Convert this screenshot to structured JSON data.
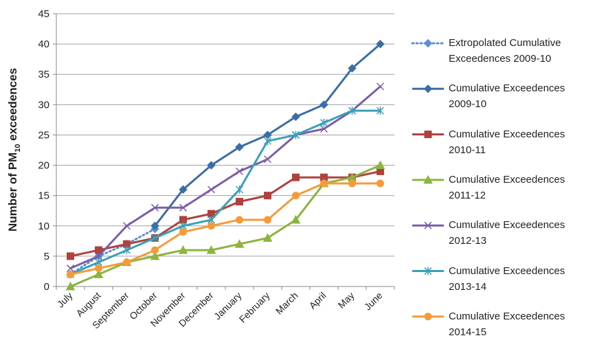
{
  "chart_data": {
    "type": "line",
    "y_label": [
      "Number of PM",
      "10",
      " exceedences"
    ],
    "categories": [
      "July",
      "August",
      "September",
      "October",
      "November",
      "December",
      "January",
      "February",
      "March",
      "April",
      "May",
      "June"
    ],
    "ylim": [
      0,
      45
    ],
    "yticks": [
      0,
      5,
      10,
      15,
      20,
      25,
      30,
      35,
      40,
      45
    ],
    "grid": true,
    "series": [
      {
        "name": "Extropolated Cumulative Exceedences 2009-10",
        "color": "#5b8fd0",
        "marker": "diamond",
        "dash": "dotted",
        "values": [
          2,
          5,
          7,
          9.5,
          null,
          null,
          null,
          null,
          null,
          null,
          null,
          null
        ]
      },
      {
        "name": "Cumulative Exceedences 2009-10",
        "color": "#3a6ea5",
        "marker": "diamond",
        "values": [
          null,
          null,
          null,
          10,
          16,
          20,
          23,
          25,
          28,
          30,
          36,
          40
        ]
      },
      {
        "name": "Cumulative Exceedences 2010-11",
        "color": "#b0413e",
        "marker": "square",
        "values": [
          5,
          6,
          7,
          8,
          11,
          12,
          14,
          15,
          18,
          18,
          18,
          19
        ]
      },
      {
        "name": "Cumulative Exceedences 2011-12",
        "color": "#8db43e",
        "marker": "triangle",
        "values": [
          0,
          2,
          4,
          5,
          6,
          6,
          7,
          8,
          11,
          17,
          18,
          20
        ]
      },
      {
        "name": "Cumulative Exceedences 2012-13",
        "color": "#7b5ea7",
        "marker": "x",
        "values": [
          3,
          5,
          10,
          13,
          13,
          16,
          19,
          21,
          25,
          26,
          29,
          33
        ]
      },
      {
        "name": "Cumulative Exceedences 2013-14",
        "color": "#3aa0b8",
        "marker": "star",
        "values": [
          2,
          4,
          6,
          8,
          10,
          11,
          16,
          24,
          25,
          27,
          29,
          29
        ]
      },
      {
        "name": "Cumulative Exceedences 2014-15",
        "color": "#f59a38",
        "marker": "circle",
        "values": [
          2,
          3,
          4,
          6,
          9,
          10,
          11,
          11,
          15,
          17,
          17,
          17
        ]
      }
    ]
  }
}
